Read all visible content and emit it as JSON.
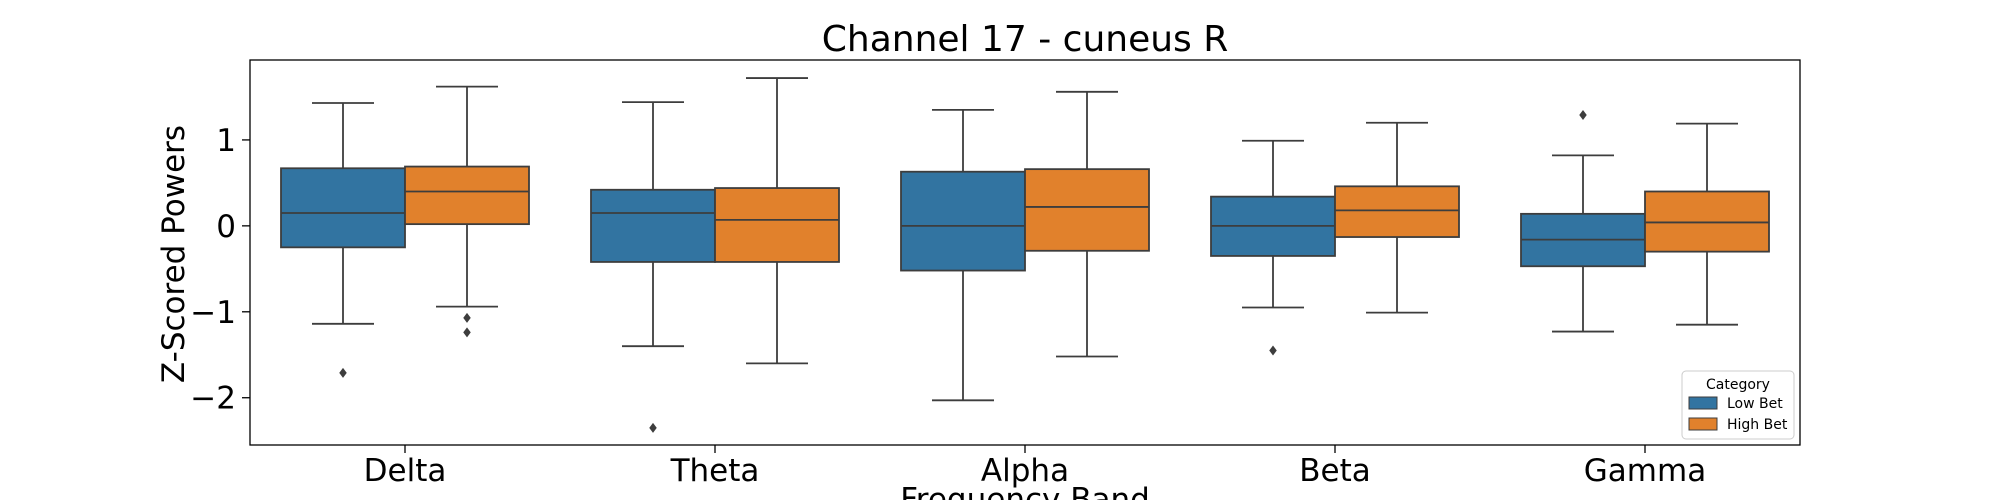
{
  "chart_data": {
    "type": "box",
    "title": "Channel 17 - cuneus R",
    "xlabel": "Frequency Band",
    "ylabel": "Z-Scored Powers",
    "categories": [
      "Delta",
      "Theta",
      "Alpha",
      "Beta",
      "Gamma"
    ],
    "ylim": [
      -2.55,
      1.93
    ],
    "yticks": [
      -2,
      -1,
      0,
      1
    ],
    "ytick_labels": [
      "−2",
      "−1",
      "0",
      "1"
    ],
    "grid": false,
    "legend": {
      "title": "Category",
      "position": "lower-right"
    },
    "series": [
      {
        "name": "Low Bet",
        "color": "#3274a1",
        "boxes": [
          {
            "whislo": -1.14,
            "q1": -0.25,
            "med": 0.15,
            "q3": 0.67,
            "whishi": 1.43,
            "fliers": [
              -1.71
            ]
          },
          {
            "whislo": -1.4,
            "q1": -0.42,
            "med": 0.15,
            "q3": 0.42,
            "whishi": 1.44,
            "fliers": [
              -2.35
            ]
          },
          {
            "whislo": -2.03,
            "q1": -0.52,
            "med": 0.0,
            "q3": 0.63,
            "whishi": 1.35,
            "fliers": []
          },
          {
            "whislo": -0.95,
            "q1": -0.35,
            "med": 0.0,
            "q3": 0.34,
            "whishi": 0.99,
            "fliers": [
              -1.45
            ]
          },
          {
            "whislo": -1.23,
            "q1": -0.47,
            "med": -0.16,
            "q3": 0.14,
            "whishi": 0.82,
            "fliers": [
              1.29
            ]
          }
        ]
      },
      {
        "name": "High Bet",
        "color": "#e1812c",
        "boxes": [
          {
            "whislo": -0.94,
            "q1": 0.02,
            "med": 0.4,
            "q3": 0.69,
            "whishi": 1.62,
            "fliers": [
              -1.07,
              -1.24
            ]
          },
          {
            "whislo": -1.6,
            "q1": -0.42,
            "med": 0.07,
            "q3": 0.44,
            "whishi": 1.72,
            "fliers": []
          },
          {
            "whislo": -1.52,
            "q1": -0.29,
            "med": 0.22,
            "q3": 0.66,
            "whishi": 1.56,
            "fliers": []
          },
          {
            "whislo": -1.01,
            "q1": -0.13,
            "med": 0.18,
            "q3": 0.46,
            "whishi": 1.2,
            "fliers": []
          },
          {
            "whislo": -1.15,
            "q1": -0.3,
            "med": 0.04,
            "q3": 0.4,
            "whishi": 1.19,
            "fliers": []
          }
        ]
      }
    ]
  }
}
